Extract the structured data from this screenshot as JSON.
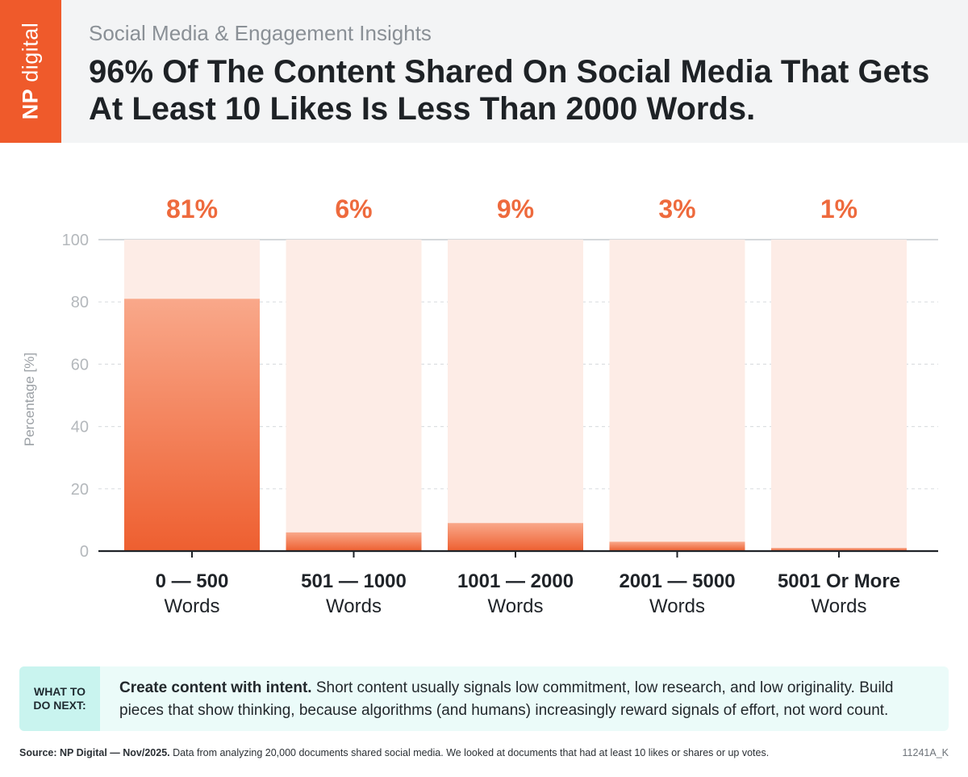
{
  "brand": {
    "logo_text_bold": "NP",
    "logo_text": "digital",
    "brand_color": "#ef5a2b"
  },
  "header": {
    "subtitle": "Social Media & Engagement Insights",
    "title": "96% Of The Content Shared On Social Media That Gets At Least 10 Likes Is Less Than 2000 Words."
  },
  "chart_data": {
    "type": "bar",
    "categories": [
      [
        "0 — 500",
        "Words"
      ],
      [
        "501 — 1000",
        "Words"
      ],
      [
        "1001 — 2000",
        "Words"
      ],
      [
        "2001 — 5000",
        "Words"
      ],
      [
        "5001 Or More",
        "Words"
      ]
    ],
    "values": [
      81,
      6,
      9,
      3,
      1
    ],
    "value_labels": [
      "81%",
      "6%",
      "9%",
      "3%",
      "1%"
    ],
    "ylabel": "Percentage [%]",
    "xlabel": "",
    "ylim": [
      0,
      100
    ],
    "yticks": [
      0,
      20,
      40,
      60,
      80,
      100
    ],
    "grid": true,
    "colors": {
      "bar_top": "#f9a88a",
      "bar_bottom": "#ee5f30",
      "track": "#fdece6",
      "value_label": "#ee6a3d"
    }
  },
  "next_steps": {
    "tag": [
      "WHAT TO",
      "DO NEXT:"
    ],
    "lead": "Create content with intent.",
    "body": " Short content usually signals low commitment, low research, and low originality. Build pieces that show thinking, because algorithms (and humans) increasingly reward signals of effort, not word count."
  },
  "footer": {
    "source_bold": "Source: NP Digital — Nov/2025.",
    "source_text": " Data from analyzing 20,000 documents shared social media. We looked at documents that had at least 10 likes or shares or up votes.",
    "code": "11241A_K"
  }
}
